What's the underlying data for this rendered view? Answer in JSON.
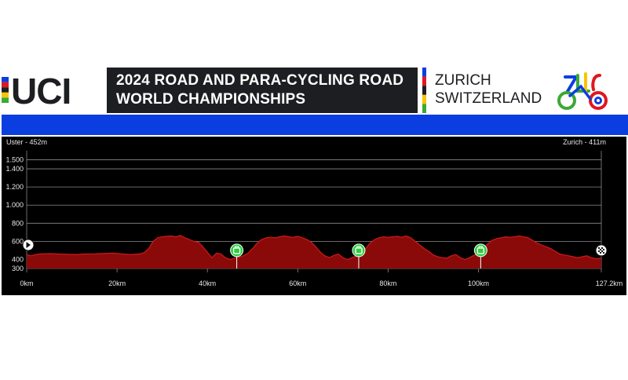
{
  "header": {
    "org": "UCI",
    "title_line1": "2024 ROAD AND PARA-CYCLING ROAD",
    "title_line2": "WORLD CHAMPIONSHIPS",
    "city": "ZURICH",
    "country": "SWITZERLAND"
  },
  "colors": {
    "title_bg": "#1c1e22",
    "blue_bar": "#0a3ee0",
    "profile_fill": "#8a0a0a",
    "profile_line": "#d01818",
    "marker_green": "#2ecc40",
    "rainbow": [
      "#0a3ee0",
      "#e2161f",
      "#1c1e22",
      "#f7c600",
      "#3aaa35"
    ]
  },
  "chart_data": {
    "type": "area",
    "start_label": "Uster - 452m",
    "end_label": "Zurich - 411m",
    "ylim": [
      300,
      1600
    ],
    "yticks": [
      300,
      400,
      600,
      800,
      1000,
      1200,
      1400,
      1500
    ],
    "ytick_labels": [
      "300",
      "400",
      "600",
      "800",
      "1.000",
      "1.200",
      "1.400",
      "1.500"
    ],
    "xlim": [
      0,
      127.2
    ],
    "xticks": [
      0,
      20,
      40,
      60,
      80,
      100,
      127.2
    ],
    "xtick_labels": [
      "0km",
      "20km",
      "40km",
      "60km",
      "80km",
      "100km",
      "127.2km"
    ],
    "series": [
      {
        "x": [
          0,
          1,
          2,
          3,
          5,
          7,
          9,
          11,
          13,
          15,
          17,
          19,
          21,
          23,
          25,
          26,
          27,
          28,
          29,
          30,
          31,
          32,
          33,
          34,
          35,
          36,
          37,
          38,
          39,
          40,
          41,
          42,
          43,
          44,
          45,
          46,
          47,
          48,
          49,
          50,
          51,
          52,
          53,
          54,
          55,
          56,
          57,
          58,
          59,
          60,
          61,
          62,
          63,
          64,
          65,
          66,
          67,
          68,
          69,
          70,
          71,
          72,
          73,
          74,
          75,
          76,
          77,
          78,
          79,
          80,
          81,
          82,
          83,
          84,
          85,
          86,
          87,
          88,
          89,
          90,
          91,
          92,
          93,
          94,
          95,
          96,
          97,
          98,
          99,
          100,
          101,
          102,
          103,
          104,
          105,
          106,
          107,
          108,
          109,
          110,
          111,
          112,
          113,
          114,
          115,
          116,
          117,
          118,
          119,
          120,
          121,
          122,
          123,
          124,
          125,
          126,
          127.2
        ],
        "y": [
          452,
          440,
          455,
          460,
          465,
          460,
          458,
          455,
          460,
          462,
          466,
          470,
          462,
          455,
          460,
          475,
          520,
          600,
          640,
          650,
          655,
          660,
          650,
          665,
          640,
          620,
          600,
          590,
          540,
          480,
          420,
          470,
          460,
          420,
          400,
          415,
          425,
          440,
          470,
          520,
          580,
          620,
          640,
          645,
          640,
          650,
          660,
          650,
          645,
          655,
          640,
          620,
          590,
          540,
          480,
          440,
          420,
          445,
          460,
          420,
          400,
          420,
          440,
          470,
          520,
          580,
          620,
          640,
          650,
          645,
          650,
          655,
          645,
          660,
          640,
          600,
          560,
          520,
          490,
          450,
          430,
          420,
          415,
          440,
          455,
          420,
          400,
          420,
          445,
          470,
          520,
          570,
          610,
          630,
          640,
          650,
          645,
          650,
          660,
          650,
          640,
          610,
          580,
          560,
          540,
          520,
          490,
          460,
          450,
          440,
          430,
          420,
          430,
          440,
          420,
          410,
          411
        ]
      }
    ],
    "markers": [
      {
        "km": 0,
        "kind": "start"
      },
      {
        "km": 46.5,
        "kind": "feed"
      },
      {
        "km": 73.5,
        "kind": "feed"
      },
      {
        "km": 100.5,
        "kind": "feed"
      },
      {
        "km": 127.2,
        "kind": "finish"
      }
    ]
  }
}
